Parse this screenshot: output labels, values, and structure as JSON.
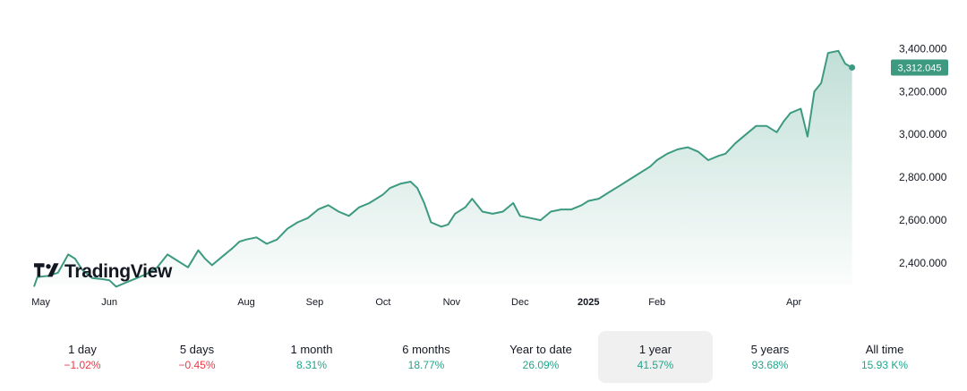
{
  "brand": {
    "name": "TradingView"
  },
  "chart_data": {
    "type": "area",
    "color": "#3d9a80",
    "current_value": 3312.045,
    "current_value_label": "3,312.045",
    "ylim": [
      2300,
      3460
    ],
    "y_ticks": [
      2400,
      2600,
      2800,
      3000,
      3200,
      3400
    ],
    "y_tick_labels": [
      "2,400.000",
      "2,600.000",
      "2,800.000",
      "3,000.000",
      "3,200.000",
      "3,400.000"
    ],
    "xlim": [
      0,
      12.4
    ],
    "x_ticks": [
      {
        "label": "May",
        "pos": 0.1,
        "bold": false
      },
      {
        "label": "Jun",
        "pos": 1.1,
        "bold": false
      },
      {
        "label": "Aug",
        "pos": 3.1,
        "bold": false
      },
      {
        "label": "Sep",
        "pos": 4.1,
        "bold": false
      },
      {
        "label": "Oct",
        "pos": 5.1,
        "bold": false
      },
      {
        "label": "Nov",
        "pos": 6.1,
        "bold": false
      },
      {
        "label": "Dec",
        "pos": 7.1,
        "bold": false
      },
      {
        "label": "2025",
        "pos": 8.1,
        "bold": true
      },
      {
        "label": "Feb",
        "pos": 9.1,
        "bold": false
      },
      {
        "label": "Apr",
        "pos": 11.1,
        "bold": false
      }
    ],
    "series": [
      {
        "x": [
          0,
          0.05,
          0.2,
          0.35,
          0.5,
          0.6,
          0.7,
          0.85,
          1.0,
          1.1,
          1.2,
          1.35,
          1.5,
          1.65,
          1.8,
          1.95,
          2.1,
          2.25,
          2.4,
          2.5,
          2.6,
          2.75,
          2.9,
          3.0,
          3.1,
          3.25,
          3.4,
          3.55,
          3.7,
          3.85,
          4.0,
          4.15,
          4.3,
          4.45,
          4.6,
          4.75,
          4.9,
          5.0,
          5.1,
          5.2,
          5.35,
          5.5,
          5.6,
          5.7,
          5.8,
          5.95,
          6.05,
          6.15,
          6.3,
          6.4,
          6.55,
          6.7,
          6.85,
          7.0,
          7.1,
          7.25,
          7.4,
          7.55,
          7.7,
          7.85,
          8.0,
          8.1,
          8.25,
          8.4,
          8.55,
          8.7,
          8.85,
          9.0,
          9.1,
          9.25,
          9.4,
          9.55,
          9.7,
          9.85,
          10.0,
          10.1,
          10.25,
          10.4,
          10.55,
          10.7,
          10.85,
          10.95,
          11.05,
          11.2,
          11.3,
          11.4,
          11.5,
          11.6,
          11.75,
          11.85,
          11.95
        ],
        "y": [
          2290,
          2335,
          2340,
          2355,
          2440,
          2420,
          2370,
          2330,
          2325,
          2320,
          2290,
          2310,
          2330,
          2350,
          2380,
          2440,
          2410,
          2380,
          2460,
          2420,
          2390,
          2430,
          2470,
          2500,
          2510,
          2520,
          2490,
          2510,
          2560,
          2590,
          2610,
          2650,
          2670,
          2640,
          2620,
          2660,
          2680,
          2700,
          2720,
          2750,
          2770,
          2780,
          2750,
          2680,
          2590,
          2570,
          2580,
          2630,
          2660,
          2700,
          2640,
          2630,
          2640,
          2680,
          2620,
          2610,
          2600,
          2640,
          2650,
          2650,
          2670,
          2690,
          2700,
          2730,
          2760,
          2790,
          2820,
          2850,
          2880,
          2910,
          2930,
          2940,
          2920,
          2880,
          2900,
          2910,
          2960,
          3000,
          3040,
          3040,
          3010,
          3060,
          3100,
          3120,
          2990,
          3200,
          3240,
          3380,
          3390,
          3330,
          3312.045
        ]
      }
    ]
  },
  "ranges": [
    {
      "label": "1 day",
      "value": "−1.02%",
      "tone": "neg",
      "active": false
    },
    {
      "label": "5 days",
      "value": "−0.45%",
      "tone": "neg",
      "active": false
    },
    {
      "label": "1 month",
      "value": "8.31%",
      "tone": "pos",
      "active": false
    },
    {
      "label": "6 months",
      "value": "18.77%",
      "tone": "pos",
      "active": false
    },
    {
      "label": "Year to date",
      "value": "26.09%",
      "tone": "pos",
      "active": false
    },
    {
      "label": "1 year",
      "value": "41.57%",
      "tone": "pos",
      "active": true
    },
    {
      "label": "5 years",
      "value": "93.68%",
      "tone": "pos",
      "active": false
    },
    {
      "label": "All time",
      "value": "15.93 K%",
      "tone": "pos",
      "active": false
    }
  ]
}
